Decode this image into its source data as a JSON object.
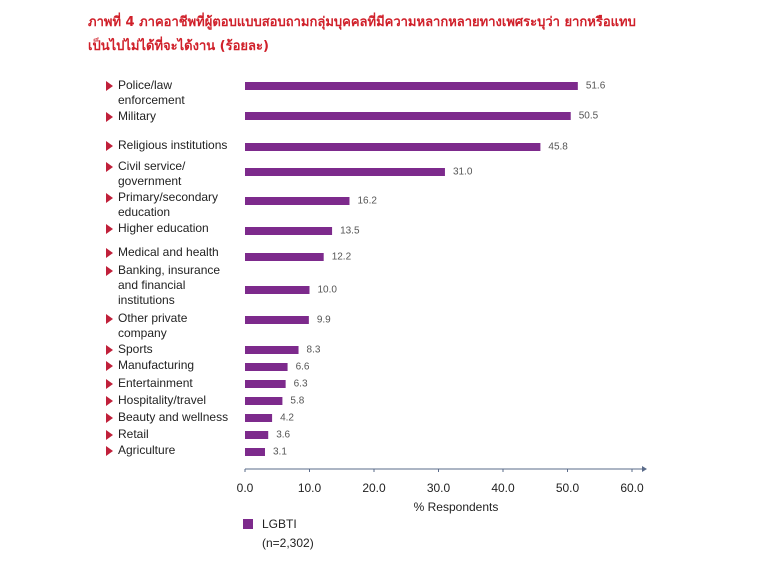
{
  "chart_data": {
    "type": "barh",
    "title": "ภาพที่ 4 ภาคอาชีพที่ผู้ตอบแบบสอบถามกลุ่มบุคคลที่มีความหลากหลายทางเพศระบุว่า ยากหรือแทบ\nเป็นไปไม่ได้ที่จะได้งาน (ร้อยละ)",
    "categories": [
      "Police/law\nenforcement",
      "Military",
      "Religious institutions",
      "Civil service/\ngovernment",
      "Primary/secondary\neducation",
      "Higher education",
      "Medical and health",
      "Banking, insurance\nand financial\ninstitutions",
      "Other private\ncompany",
      "Sports",
      "Manufacturing",
      "Entertainment",
      "Hospitality/travel",
      "Beauty and wellness",
      "Retail",
      "Agriculture"
    ],
    "series": [
      {
        "name": "LGBTI",
        "color": "#7d2a8c",
        "values": [
          51.6,
          50.5,
          45.8,
          31.0,
          16.2,
          13.5,
          12.2,
          10.0,
          9.9,
          8.3,
          6.6,
          6.3,
          5.8,
          4.2,
          3.6,
          3.1
        ],
        "value_labels": [
          "51.6",
          "50.5",
          "45.8",
          "31.0",
          "16.2",
          "13.5",
          "12.2",
          "10.0",
          "9.9",
          "8.3",
          "6.6",
          "6.3",
          "5.8",
          "4.2",
          "3.6",
          "3.1"
        ]
      }
    ],
    "legend_note": "(n=2,302)",
    "xlabel": "% Respondents",
    "xlim": [
      0,
      60
    ],
    "xticks": [
      {
        "value": 0,
        "label": "0.0"
      },
      {
        "value": 10,
        "label": "10.0"
      },
      {
        "value": 20,
        "label": "20.0"
      },
      {
        "value": 30,
        "label": "30.0"
      },
      {
        "value": 40,
        "label": "40.0"
      },
      {
        "value": 50,
        "label": "50.0"
      },
      {
        "value": 60,
        "label": "60.0"
      }
    ]
  }
}
